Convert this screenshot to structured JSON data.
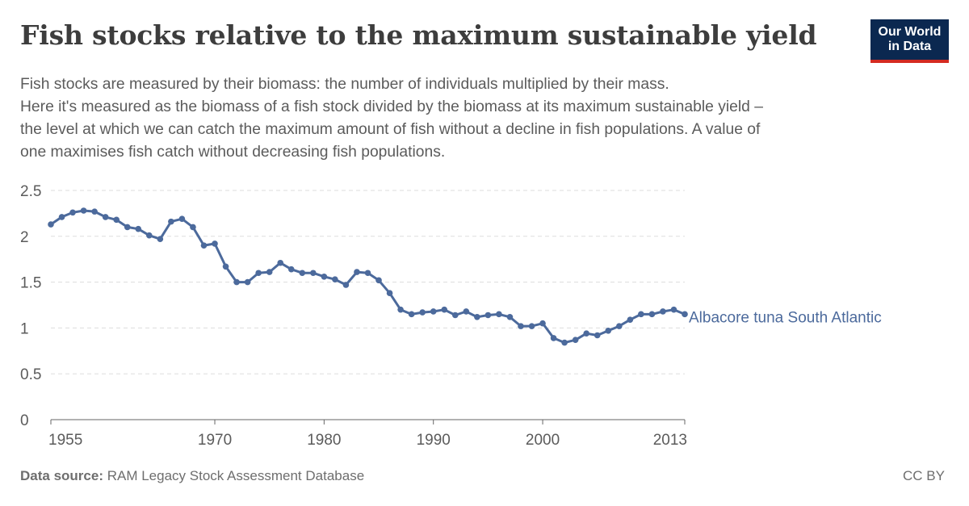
{
  "header": {
    "title": "Fish stocks relative to the maximum sustainable yield",
    "subtitle_lines": [
      "Fish stocks are measured by their biomass: the number of individuals multiplied by their mass.",
      "Here it's measured as the biomass of a fish stock divided by the biomass at its maximum sustainable yield –",
      "the level at which we can catch the maximum amount of fish without a decline in fish populations. A value of",
      "one maximises fish catch without decreasing fish populations."
    ]
  },
  "logo": {
    "line1": "Our World",
    "line2": "in Data"
  },
  "footer": {
    "source_label": "Data source:",
    "source_text": "RAM Legacy Stock Assessment Database",
    "license": "CC BY"
  },
  "colors": {
    "series": "#4c6a9c",
    "grid": "#dddddd",
    "axis": "#666666",
    "text": "#5b5b5b"
  },
  "chart_data": {
    "type": "line",
    "title": "Fish stocks relative to the maximum sustainable yield",
    "xlabel": "",
    "ylabel": "",
    "xlim": [
      1955,
      2013
    ],
    "ylim": [
      0,
      2.5
    ],
    "yticks": [
      0,
      0.5,
      1,
      1.5,
      2,
      2.5
    ],
    "ytick_labels": [
      "0",
      "0.5",
      "1",
      "1.5",
      "2",
      "2.5"
    ],
    "xticks": [
      1955,
      1970,
      1980,
      1990,
      2000,
      2013
    ],
    "xtick_labels": [
      "1955",
      "1970",
      "1980",
      "1990",
      "2000",
      "2013"
    ],
    "grid": "horizontal dashed",
    "series": [
      {
        "name": "Albacore tuna South Atlantic",
        "x": [
          1955,
          1956,
          1957,
          1958,
          1959,
          1960,
          1961,
          1962,
          1963,
          1964,
          1965,
          1966,
          1967,
          1968,
          1969,
          1970,
          1971,
          1972,
          1973,
          1974,
          1975,
          1976,
          1977,
          1978,
          1979,
          1980,
          1981,
          1982,
          1983,
          1984,
          1985,
          1986,
          1987,
          1988,
          1989,
          1990,
          1991,
          1992,
          1993,
          1994,
          1995,
          1996,
          1997,
          1998,
          1999,
          2000,
          2001,
          2002,
          2003,
          2004,
          2005,
          2006,
          2007,
          2008,
          2009,
          2010,
          2011,
          2012,
          2013
        ],
        "y": [
          2.13,
          2.21,
          2.26,
          2.28,
          2.27,
          2.21,
          2.18,
          2.1,
          2.08,
          2.01,
          1.97,
          2.16,
          2.19,
          2.1,
          1.9,
          1.92,
          1.67,
          1.5,
          1.5,
          1.6,
          1.61,
          1.71,
          1.64,
          1.6,
          1.6,
          1.56,
          1.53,
          1.47,
          1.61,
          1.6,
          1.52,
          1.38,
          1.2,
          1.15,
          1.17,
          1.18,
          1.2,
          1.14,
          1.18,
          1.12,
          1.14,
          1.15,
          1.12,
          1.02,
          1.02,
          1.05,
          0.89,
          0.84,
          0.87,
          0.94,
          0.92,
          0.97,
          1.02,
          1.09,
          1.15,
          1.15,
          1.18,
          1.2,
          1.15
        ]
      }
    ]
  }
}
